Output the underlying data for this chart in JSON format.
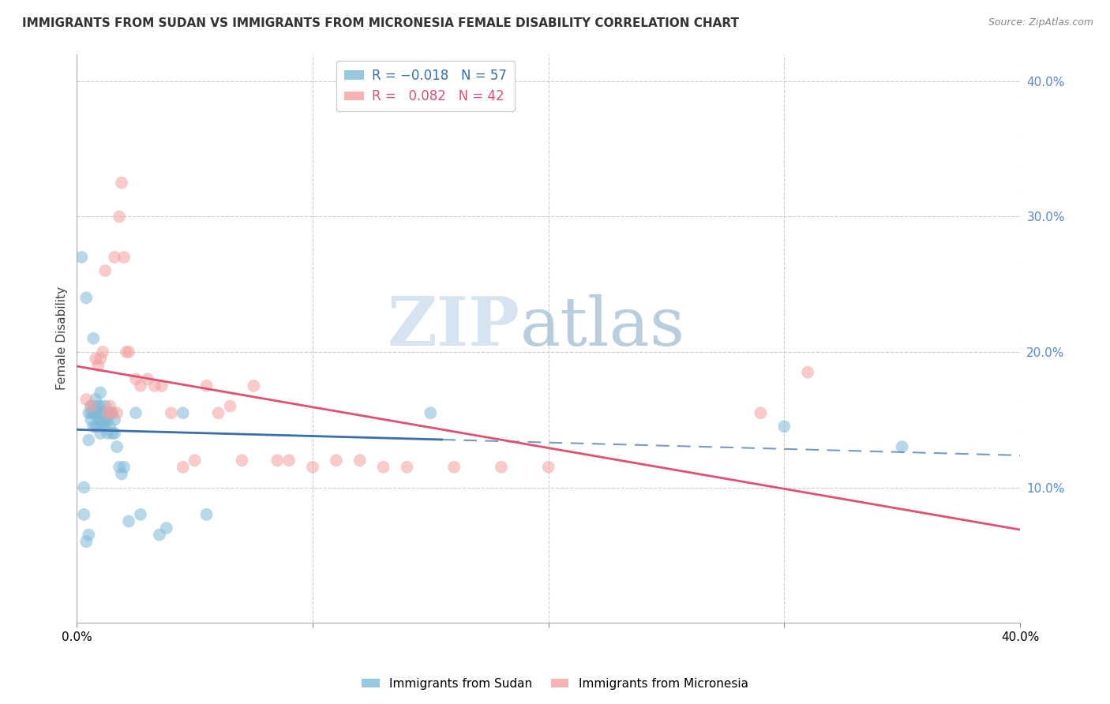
{
  "title": "IMMIGRANTS FROM SUDAN VS IMMIGRANTS FROM MICRONESIA FEMALE DISABILITY CORRELATION CHART",
  "source": "Source: ZipAtlas.com",
  "ylabel": "Female Disability",
  "xlim": [
    0.0,
    0.4
  ],
  "ylim": [
    0.0,
    0.42
  ],
  "sudan_R": -0.018,
  "sudan_N": 57,
  "micronesia_R": 0.082,
  "micronesia_N": 42,
  "sudan_color": "#7fb9d8",
  "micronesia_color": "#f4a0a0",
  "regression_sudan_color": "#3a6fad",
  "regression_micronesia_color": "#e05070",
  "background_color": "#ffffff",
  "watermark_zip": "ZIP",
  "watermark_atlas": "atlas",
  "sudan_x": [
    0.002,
    0.003,
    0.003,
    0.004,
    0.004,
    0.005,
    0.005,
    0.005,
    0.006,
    0.006,
    0.006,
    0.007,
    0.007,
    0.007,
    0.007,
    0.008,
    0.008,
    0.008,
    0.008,
    0.009,
    0.009,
    0.009,
    0.009,
    0.01,
    0.01,
    0.01,
    0.01,
    0.01,
    0.011,
    0.011,
    0.011,
    0.012,
    0.012,
    0.012,
    0.013,
    0.013,
    0.013,
    0.014,
    0.014,
    0.015,
    0.015,
    0.016,
    0.016,
    0.017,
    0.018,
    0.019,
    0.02,
    0.022,
    0.025,
    0.027,
    0.035,
    0.038,
    0.045,
    0.055,
    0.15,
    0.3,
    0.35
  ],
  "sudan_y": [
    0.27,
    0.1,
    0.08,
    0.24,
    0.06,
    0.155,
    0.135,
    0.065,
    0.155,
    0.16,
    0.15,
    0.21,
    0.16,
    0.155,
    0.145,
    0.165,
    0.155,
    0.155,
    0.145,
    0.16,
    0.155,
    0.15,
    0.145,
    0.17,
    0.16,
    0.155,
    0.15,
    0.14,
    0.155,
    0.15,
    0.145,
    0.16,
    0.15,
    0.145,
    0.155,
    0.15,
    0.14,
    0.155,
    0.145,
    0.155,
    0.14,
    0.15,
    0.14,
    0.13,
    0.115,
    0.11,
    0.115,
    0.075,
    0.155,
    0.08,
    0.065,
    0.07,
    0.155,
    0.08,
    0.155,
    0.145,
    0.13
  ],
  "micronesia_x": [
    0.004,
    0.006,
    0.008,
    0.009,
    0.01,
    0.011,
    0.012,
    0.013,
    0.014,
    0.015,
    0.016,
    0.017,
    0.018,
    0.019,
    0.02,
    0.021,
    0.022,
    0.025,
    0.027,
    0.03,
    0.033,
    0.036,
    0.04,
    0.045,
    0.05,
    0.055,
    0.06,
    0.065,
    0.07,
    0.075,
    0.085,
    0.09,
    0.1,
    0.11,
    0.12,
    0.13,
    0.14,
    0.16,
    0.18,
    0.2,
    0.29,
    0.31
  ],
  "micronesia_y": [
    0.165,
    0.16,
    0.195,
    0.19,
    0.195,
    0.2,
    0.26,
    0.155,
    0.16,
    0.155,
    0.27,
    0.155,
    0.3,
    0.325,
    0.27,
    0.2,
    0.2,
    0.18,
    0.175,
    0.18,
    0.175,
    0.175,
    0.155,
    0.115,
    0.12,
    0.175,
    0.155,
    0.16,
    0.12,
    0.175,
    0.12,
    0.12,
    0.115,
    0.12,
    0.12,
    0.115,
    0.115,
    0.115,
    0.115,
    0.115,
    0.155,
    0.185
  ]
}
